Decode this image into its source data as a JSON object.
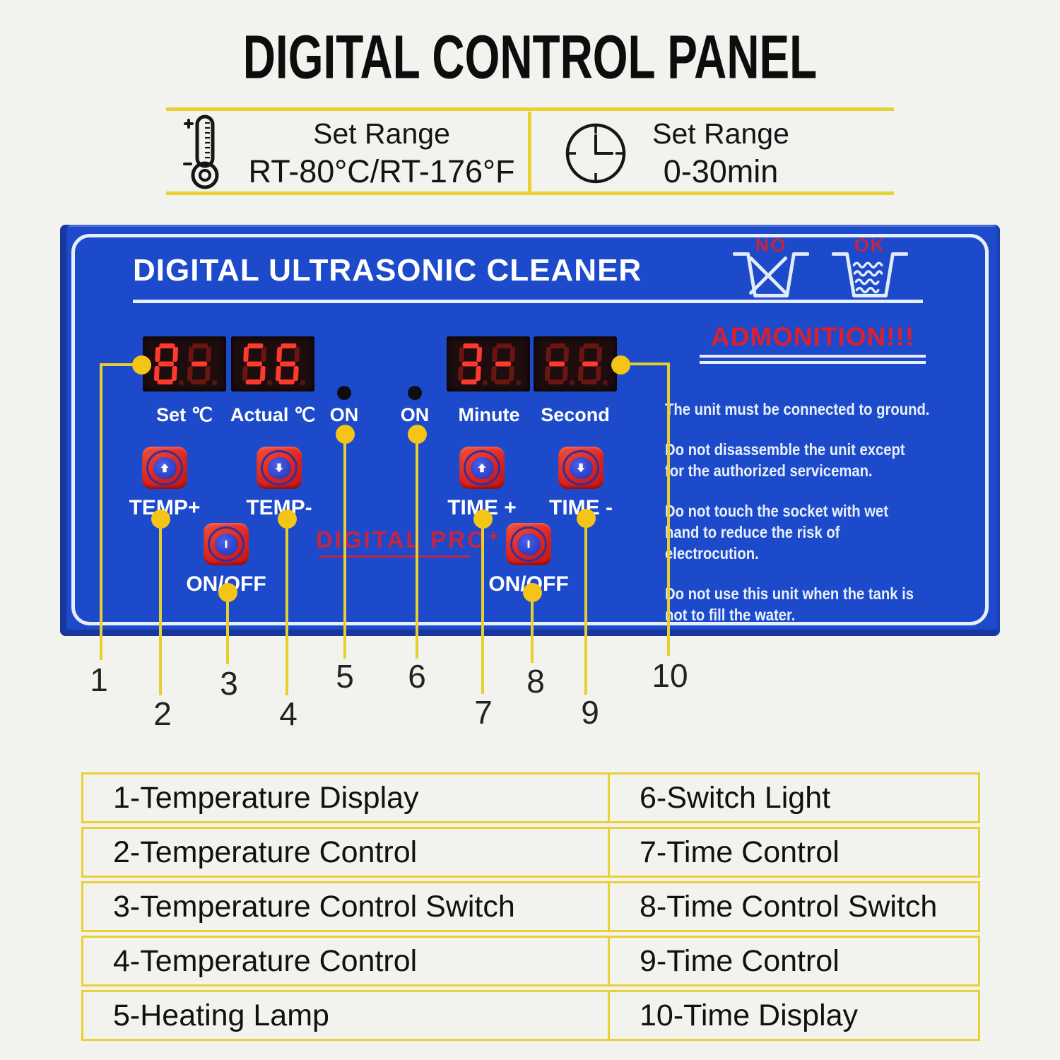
{
  "page": {
    "title": "DIGITAL CONTROL PANEL",
    "background": "#f2f2ef"
  },
  "spec": {
    "temp": {
      "icon": "thermometer-icon",
      "title": "Set Range",
      "value": "RT-80°C/RT-176°F"
    },
    "time": {
      "icon": "clock-icon",
      "title": "Set Range",
      "value": "0-30min"
    }
  },
  "panel": {
    "title": "DIGITAL ULTRASONIC CLEANER",
    "brand": "DIGITAL PRO⁺",
    "admonition": "ADMONITION!!!",
    "no_label": "NO",
    "ok_label": "OK",
    "warnings": [
      "The unit must be connected to ground.",
      "Do not disassemble the unit except for the authorized serviceman.",
      "Do not touch the socket with wet hand to reduce the risk of electrocution.",
      "Do not use this unit when the tank is not to fill the water."
    ],
    "displays": {
      "set": {
        "label": "Set ℃",
        "digits": [
          "8",
          "-"
        ]
      },
      "actual": {
        "label": "Actual ℃",
        "digits": [
          "5",
          "6"
        ]
      },
      "minute": {
        "label": "Minute",
        "digits": [
          "3",
          "-"
        ]
      },
      "second": {
        "label": "Second",
        "digits": [
          "-",
          "-"
        ]
      }
    },
    "indicators": {
      "heating_label": "ON",
      "switch_label": "ON"
    },
    "buttons": {
      "temp_up": "TEMP+",
      "temp_down": "TEMP-",
      "temp_power": "ON/OFF",
      "time_up": "TIME +",
      "time_down": "TIME -",
      "time_power": "ON/OFF"
    },
    "colors": {
      "panel_blue": "#1c4acb",
      "accent_yellow": "#e8d233",
      "button_red": "#e02a22",
      "led_on": "#ff392b",
      "warn_red": "#dc1f30"
    }
  },
  "callouts": {
    "labels": [
      "1",
      "2",
      "3",
      "4",
      "5",
      "6",
      "7",
      "8",
      "9",
      "10"
    ]
  },
  "legend": {
    "rows": [
      {
        "left": "1-Temperature Display",
        "right": "6-Switch Light"
      },
      {
        "left": "2-Temperature Control",
        "right": "7-Time Control"
      },
      {
        "left": "3-Temperature Control Switch",
        "right": "8-Time Control Switch"
      },
      {
        "left": "4-Temperature Control",
        "right": "9-Time Control"
      },
      {
        "left": "5-Heating Lamp",
        "right": "10-Time Display"
      }
    ]
  }
}
